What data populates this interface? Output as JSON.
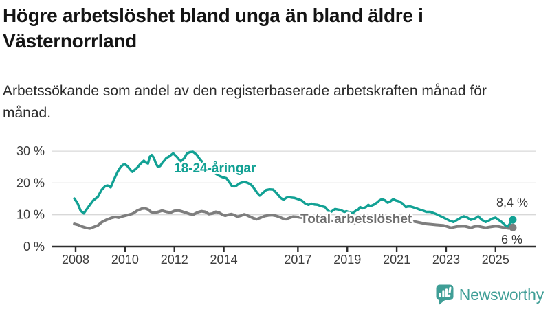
{
  "header": {
    "title": "Högre arbetslöshet bland unga än bland äldre i Västernorrland",
    "subtitle": "Arbetssökande som andel av den registerbaserade arbetskraften månad för månad."
  },
  "colors": {
    "accent_teal": "#12a194",
    "series_gray": "#7e7e7e",
    "series_gray_label": "#6e6e6e",
    "axis_dark": "#2d2d2d",
    "grid_light": "#d8d8d8",
    "value_label_dark": "#383838",
    "logo_teal": "#3f9e96"
  },
  "footer": {
    "brand": "Newsworthy",
    "logo_icon": "speech-bubble-bar-chart-exclamation"
  },
  "chart_data": {
    "type": "line",
    "title": "Högre arbetslöshet bland unga än bland äldre i Västernorrland",
    "subtitle": "Arbetssökande som andel av den registerbaserade arbetskraften månad för månad.",
    "unit": "%",
    "grid": true,
    "legend_position": "inline-labels",
    "xlim": [
      2007.9,
      2026.6
    ],
    "ylim": [
      0,
      31
    ],
    "y_ticks": [
      {
        "value": 0,
        "label": "0 %"
      },
      {
        "value": 10,
        "label": "10 %"
      },
      {
        "value": 20,
        "label": "20 %"
      },
      {
        "value": 30,
        "label": "30 %"
      }
    ],
    "x_ticks": [
      {
        "value": 2008,
        "label": "2008"
      },
      {
        "value": 2010,
        "label": "2010"
      },
      {
        "value": 2012,
        "label": "2012"
      },
      {
        "value": 2014,
        "label": "2014"
      },
      {
        "value": 2017,
        "label": "2017"
      },
      {
        "value": 2019,
        "label": "2019"
      },
      {
        "value": 2021,
        "label": "2021"
      },
      {
        "value": 2023,
        "label": "2023"
      },
      {
        "value": 2025,
        "label": "2025"
      }
    ],
    "series": [
      {
        "name": "Total arbetslöshet",
        "color": "#7e7e7e",
        "label_color": "#6e6e6e",
        "stroke_width": 4,
        "end_label": "6 %",
        "end_value": 6.0,
        "points": [
          [
            2007.95,
            7.1
          ],
          [
            2008.1,
            6.8
          ],
          [
            2008.25,
            6.3
          ],
          [
            2008.42,
            5.9
          ],
          [
            2008.58,
            5.7
          ],
          [
            2008.72,
            6.1
          ],
          [
            2008.9,
            6.6
          ],
          [
            2009.07,
            7.7
          ],
          [
            2009.25,
            8.4
          ],
          [
            2009.45,
            9.0
          ],
          [
            2009.6,
            9.3
          ],
          [
            2009.75,
            9.1
          ],
          [
            2009.9,
            9.5
          ],
          [
            2010.1,
            9.9
          ],
          [
            2010.3,
            10.3
          ],
          [
            2010.5,
            11.3
          ],
          [
            2010.68,
            11.9
          ],
          [
            2010.8,
            12.0
          ],
          [
            2010.92,
            11.7
          ],
          [
            2011.05,
            10.9
          ],
          [
            2011.18,
            10.6
          ],
          [
            2011.35,
            10.9
          ],
          [
            2011.5,
            11.3
          ],
          [
            2011.68,
            10.9
          ],
          [
            2011.85,
            10.7
          ],
          [
            2012.0,
            11.2
          ],
          [
            2012.18,
            11.3
          ],
          [
            2012.32,
            11.0
          ],
          [
            2012.48,
            10.6
          ],
          [
            2012.62,
            10.2
          ],
          [
            2012.78,
            10.1
          ],
          [
            2012.95,
            10.8
          ],
          [
            2013.1,
            11.1
          ],
          [
            2013.25,
            10.9
          ],
          [
            2013.4,
            10.2
          ],
          [
            2013.55,
            10.4
          ],
          [
            2013.67,
            10.9
          ],
          [
            2013.8,
            10.7
          ],
          [
            2013.95,
            10.0
          ],
          [
            2014.06,
            9.7
          ],
          [
            2014.18,
            10.0
          ],
          [
            2014.3,
            10.2
          ],
          [
            2014.42,
            9.9
          ],
          [
            2014.55,
            9.4
          ],
          [
            2014.7,
            9.7
          ],
          [
            2014.82,
            10.1
          ],
          [
            2014.92,
            9.9
          ],
          [
            2015.06,
            9.4
          ],
          [
            2015.2,
            8.9
          ],
          [
            2015.33,
            8.6
          ],
          [
            2015.5,
            9.1
          ],
          [
            2015.65,
            9.6
          ],
          [
            2015.8,
            9.8
          ],
          [
            2015.95,
            9.9
          ],
          [
            2016.1,
            9.7
          ],
          [
            2016.25,
            9.3
          ],
          [
            2016.4,
            8.8
          ],
          [
            2016.52,
            8.6
          ],
          [
            2016.65,
            9.0
          ],
          [
            2016.8,
            9.4
          ],
          [
            2016.95,
            9.3
          ],
          [
            2017.2,
            9.0
          ],
          [
            2017.5,
            8.7
          ],
          [
            2017.8,
            8.5
          ],
          [
            2018.1,
            8.2
          ],
          [
            2018.4,
            8.0
          ],
          [
            2018.7,
            7.8
          ],
          [
            2019.0,
            7.6
          ],
          [
            2019.3,
            7.4
          ],
          [
            2019.6,
            7.5
          ],
          [
            2019.9,
            7.7
          ],
          [
            2020.2,
            8.6
          ],
          [
            2020.5,
            9.3
          ],
          [
            2020.8,
            9.2
          ],
          [
            2021.1,
            8.8
          ],
          [
            2021.4,
            8.3
          ],
          [
            2021.7,
            7.9
          ],
          [
            2022.0,
            7.4
          ],
          [
            2022.2,
            7.1
          ],
          [
            2022.36,
            7.0
          ],
          [
            2022.6,
            6.8
          ],
          [
            2022.9,
            6.6
          ],
          [
            2023.2,
            5.9
          ],
          [
            2023.45,
            6.3
          ],
          [
            2023.75,
            6.4
          ],
          [
            2024.0,
            5.9
          ],
          [
            2024.16,
            6.3
          ],
          [
            2024.3,
            6.4
          ],
          [
            2024.6,
            5.9
          ],
          [
            2024.72,
            6.1
          ],
          [
            2025.0,
            6.4
          ],
          [
            2025.12,
            6.3
          ],
          [
            2025.25,
            6.1
          ],
          [
            2025.4,
            5.9
          ],
          [
            2025.55,
            5.7
          ],
          [
            2025.7,
            6.0
          ]
        ]
      },
      {
        "name": "18-24-åringar",
        "color": "#12a194",
        "label_color": "#12a194",
        "stroke_width": 3.5,
        "end_label": "8,4 %",
        "end_value": 8.4,
        "points": [
          [
            2007.95,
            15.1
          ],
          [
            2008.08,
            13.6
          ],
          [
            2008.2,
            11.3
          ],
          [
            2008.33,
            10.4
          ],
          [
            2008.5,
            12.3
          ],
          [
            2008.7,
            14.4
          ],
          [
            2008.9,
            15.6
          ],
          [
            2009.05,
            17.8
          ],
          [
            2009.2,
            19.0
          ],
          [
            2009.3,
            19.2
          ],
          [
            2009.42,
            18.6
          ],
          [
            2009.55,
            21.0
          ],
          [
            2009.7,
            23.5
          ],
          [
            2009.82,
            25.0
          ],
          [
            2009.92,
            25.7
          ],
          [
            2010.0,
            25.8
          ],
          [
            2010.1,
            25.3
          ],
          [
            2010.2,
            24.3
          ],
          [
            2010.3,
            23.5
          ],
          [
            2010.42,
            24.3
          ],
          [
            2010.52,
            25.0
          ],
          [
            2010.6,
            25.8
          ],
          [
            2010.68,
            26.4
          ],
          [
            2010.76,
            27.0
          ],
          [
            2010.85,
            26.4
          ],
          [
            2010.93,
            26.1
          ],
          [
            2011.0,
            28.2
          ],
          [
            2011.08,
            28.8
          ],
          [
            2011.17,
            27.9
          ],
          [
            2011.25,
            26.1
          ],
          [
            2011.33,
            25.1
          ],
          [
            2011.42,
            25.3
          ],
          [
            2011.52,
            26.4
          ],
          [
            2011.6,
            27.1
          ],
          [
            2011.68,
            27.9
          ],
          [
            2011.76,
            28.2
          ],
          [
            2011.85,
            28.7
          ],
          [
            2011.95,
            29.3
          ],
          [
            2012.1,
            28.2
          ],
          [
            2012.25,
            26.8
          ],
          [
            2012.4,
            27.8
          ],
          [
            2012.5,
            29.2
          ],
          [
            2012.62,
            29.7
          ],
          [
            2012.75,
            29.8
          ],
          [
            2012.9,
            28.9
          ],
          [
            2013.05,
            27.3
          ],
          [
            2013.2,
            26.0
          ],
          [
            2013.35,
            24.9
          ],
          [
            2013.5,
            23.9
          ],
          [
            2013.65,
            23.0
          ],
          [
            2013.8,
            22.3
          ],
          [
            2013.95,
            21.8
          ],
          [
            2014.1,
            21.5
          ],
          [
            2014.22,
            20.3
          ],
          [
            2014.32,
            19.1
          ],
          [
            2014.42,
            18.9
          ],
          [
            2014.52,
            19.2
          ],
          [
            2014.62,
            19.8
          ],
          [
            2014.72,
            20.1
          ],
          [
            2014.8,
            20.3
          ],
          [
            2014.9,
            20.2
          ],
          [
            2015.0,
            19.9
          ],
          [
            2015.08,
            19.6
          ],
          [
            2015.17,
            18.9
          ],
          [
            2015.26,
            17.9
          ],
          [
            2015.35,
            16.9
          ],
          [
            2015.45,
            16.0
          ],
          [
            2015.6,
            17.0
          ],
          [
            2015.72,
            17.8
          ],
          [
            2015.85,
            18.0
          ],
          [
            2016.0,
            17.9
          ],
          [
            2016.15,
            16.7
          ],
          [
            2016.3,
            15.3
          ],
          [
            2016.42,
            14.7
          ],
          [
            2016.52,
            15.3
          ],
          [
            2016.62,
            15.6
          ],
          [
            2016.72,
            15.4
          ],
          [
            2016.85,
            15.3
          ],
          [
            2017.0,
            14.9
          ],
          [
            2017.15,
            14.5
          ],
          [
            2017.3,
            13.5
          ],
          [
            2017.42,
            13.1
          ],
          [
            2017.55,
            13.5
          ],
          [
            2017.68,
            13.2
          ],
          [
            2017.8,
            13.1
          ],
          [
            2017.95,
            12.7
          ],
          [
            2018.1,
            12.4
          ],
          [
            2018.22,
            11.3
          ],
          [
            2018.32,
            10.8
          ],
          [
            2018.5,
            11.8
          ],
          [
            2018.65,
            11.6
          ],
          [
            2018.78,
            11.3
          ],
          [
            2018.88,
            10.9
          ],
          [
            2018.97,
            11.1
          ],
          [
            2019.08,
            10.8
          ],
          [
            2019.2,
            10.4
          ],
          [
            2019.35,
            11.3
          ],
          [
            2019.44,
            11.6
          ],
          [
            2019.52,
            12.4
          ],
          [
            2019.62,
            12.0
          ],
          [
            2019.75,
            12.4
          ],
          [
            2019.85,
            13.1
          ],
          [
            2019.93,
            12.7
          ],
          [
            2020.06,
            13.1
          ],
          [
            2020.2,
            13.8
          ],
          [
            2020.3,
            14.5
          ],
          [
            2020.4,
            14.9
          ],
          [
            2020.53,
            14.5
          ],
          [
            2020.63,
            13.8
          ],
          [
            2020.74,
            14.2
          ],
          [
            2020.86,
            14.9
          ],
          [
            2020.96,
            14.5
          ],
          [
            2021.1,
            14.2
          ],
          [
            2021.24,
            13.5
          ],
          [
            2021.37,
            12.4
          ],
          [
            2021.5,
            12.7
          ],
          [
            2021.64,
            12.4
          ],
          [
            2021.8,
            12.0
          ],
          [
            2021.93,
            11.6
          ],
          [
            2022.07,
            11.3
          ],
          [
            2022.2,
            10.9
          ],
          [
            2022.36,
            10.9
          ],
          [
            2022.6,
            10.2
          ],
          [
            2022.9,
            9.1
          ],
          [
            2023.15,
            8.1
          ],
          [
            2023.3,
            7.7
          ],
          [
            2023.45,
            8.4
          ],
          [
            2023.6,
            9.1
          ],
          [
            2023.72,
            9.5
          ],
          [
            2023.86,
            9.1
          ],
          [
            2024.0,
            8.4
          ],
          [
            2024.16,
            8.8
          ],
          [
            2024.3,
            9.5
          ],
          [
            2024.45,
            8.4
          ],
          [
            2024.6,
            7.7
          ],
          [
            2024.72,
            8.1
          ],
          [
            2024.86,
            8.8
          ],
          [
            2025.0,
            9.1
          ],
          [
            2025.12,
            8.4
          ],
          [
            2025.25,
            7.7
          ],
          [
            2025.4,
            6.6
          ],
          [
            2025.5,
            6.3
          ],
          [
            2025.6,
            7.4
          ],
          [
            2025.7,
            8.4
          ]
        ]
      }
    ]
  }
}
